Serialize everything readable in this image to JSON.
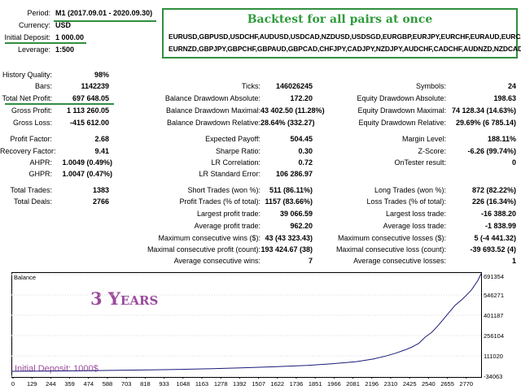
{
  "header": {
    "period_label": "Period:",
    "period_value": "M1 (2017.09.01 - 2020.09.30)",
    "currency_label": "Currency:",
    "currency_value": "USD",
    "deposit_label": "Initial Deposit:",
    "deposit_value": "1 000.00",
    "leverage_label": "Leverage:",
    "leverage_value": "1:500"
  },
  "banner": {
    "title": "Backtest for all pairs at once",
    "pairs_line1": "EURUSD,GBPUSD,USDCHF,AUDUSD,USDCAD,NZDUSD,USDSGD,EURGBP,EURJPY,EURCHF,EURAUD,EURCAD,",
    "pairs_line2": "EURNZD,GBPJPY,GBPCHF,GBPAUD,GBPCAD,CHFJPY,CADJPY,NZDJPY,AUDCHF,CADCHF,AUDNZD,NZDCAD"
  },
  "stats": {
    "history_quality_label": "History Quality:",
    "history_quality": "98%",
    "bars_label": "Bars:",
    "bars": "1142239",
    "ticks_label": "Ticks:",
    "ticks": "146026245",
    "symbols_label": "Symbols:",
    "symbols": "24",
    "net_profit_label": "Total Net Profit:",
    "net_profit": "697 648.05",
    "bal_dd_abs_label": "Balance Drawdown Absolute:",
    "bal_dd_abs": "172.20",
    "eq_dd_abs_label": "Equity Drawdown Absolute:",
    "eq_dd_abs": "198.63",
    "gross_profit_label": "Gross Profit:",
    "gross_profit": "1 113 260.05",
    "bal_dd_max_label": "Balance Drawdown Maximal:",
    "bal_dd_max": "43 402.50 (11.28%)",
    "eq_dd_max_label": "Equity Drawdown Maximal:",
    "eq_dd_max": "74 128.34 (14.63%)",
    "gross_loss_label": "Gross Loss:",
    "gross_loss": "-415 612.00",
    "bal_dd_rel_label": "Balance Drawdown Relative:",
    "bal_dd_rel": "28.64% (332.27)",
    "eq_dd_rel_label": "Equity Drawdown Relative:",
    "eq_dd_rel": "29.69% (6 785.14)",
    "profit_factor_label": "Profit Factor:",
    "profit_factor": "2.68",
    "expected_payoff_label": "Expected Payoff:",
    "expected_payoff": "504.45",
    "margin_level_label": "Margin Level:",
    "margin_level": "188.11%",
    "recovery_factor_label": "Recovery Factor:",
    "recovery_factor": "9.41",
    "sharpe_label": "Sharpe Ratio:",
    "sharpe": "0.30",
    "zscore_label": "Z-Score:",
    "zscore": "-6.26 (99.74%)",
    "ahpr_label": "AHPR:",
    "ahpr": "1.0049 (0.49%)",
    "lr_corr_label": "LR Correlation:",
    "lr_corr": "0.72",
    "ontester_label": "OnTester result:",
    "ontester": "0",
    "ghpr_label": "GHPR:",
    "ghpr": "1.0047 (0.47%)",
    "lr_err_label": "LR Standard Error:",
    "lr_err": "106 286.97",
    "total_trades_label": "Total Trades:",
    "total_trades": "1383",
    "short_label": "Short Trades (won %):",
    "short": "511 (86.11%)",
    "long_label": "Long Trades (won %):",
    "long": "872 (82.22%)",
    "total_deals_label": "Total Deals:",
    "total_deals": "2766",
    "profit_trades_label": "Profit Trades (% of total):",
    "profit_trades": "1157 (83.66%)",
    "loss_trades_label": "Loss Trades (% of total):",
    "loss_trades": "226 (16.34%)",
    "largest_profit_label": "Largest profit trade:",
    "largest_profit": "39 066.59",
    "largest_loss_label": "Largest loss trade:",
    "largest_loss": "-16 388.20",
    "avg_profit_label": "Average profit trade:",
    "avg_profit": "962.20",
    "avg_loss_label": "Average loss trade:",
    "avg_loss": "-1 838.99",
    "max_cons_wins_label": "Maximum consecutive wins ($):",
    "max_cons_wins": "43 (43 323.43)",
    "max_cons_losses_label": "Maximum consecutive losses ($):",
    "max_cons_losses": "5 (-4 441.32)",
    "maximal_cons_profit_label": "Maximal consecutive profit (count):",
    "maximal_cons_profit": "193 424.67 (38)",
    "maximal_cons_loss_label": "Maximal consecutive loss (count):",
    "maximal_cons_loss": "-39 693.52 (4)",
    "avg_cons_wins_label": "Average consecutive wins:",
    "avg_cons_wins": "7",
    "avg_cons_losses_label": "Average consecutive losses:",
    "avg_cons_losses": "1"
  },
  "chart_data": {
    "type": "line",
    "title": "Balance",
    "overlay_text": "3 Years",
    "deposit_note": "Initial Deposit: 1000$",
    "x_ticks": [
      "0",
      "129",
      "244",
      "359",
      "474",
      "588",
      "703",
      "818",
      "933",
      "1048",
      "1163",
      "1278",
      "1392",
      "1507",
      "1622",
      "1736",
      "1851",
      "1966",
      "2081",
      "2196",
      "2310",
      "2425",
      "2540",
      "2655",
      "2770"
    ],
    "y_ticks": [
      "691354",
      "546271",
      "401187",
      "256104",
      "111020",
      "-34063"
    ],
    "xlim": [
      0,
      2860
    ],
    "ylim": [
      -34063,
      691354
    ],
    "series": [
      {
        "x": [
          0,
          200,
          400,
          600,
          800,
          1000,
          1200,
          1400,
          1600,
          1800,
          1950,
          2100,
          2200,
          2280,
          2340,
          2400,
          2440,
          2480,
          2520,
          2560,
          2600,
          2650,
          2700,
          2750,
          2800,
          2840,
          2860
        ],
        "y": [
          1000,
          2500,
          4500,
          7000,
          10000,
          14000,
          19000,
          25000,
          33000,
          43000,
          55000,
          70000,
          88000,
          110000,
          130000,
          155000,
          175000,
          200000,
          245000,
          280000,
          330000,
          400000,
          470000,
          520000,
          580000,
          650000,
          697648
        ]
      }
    ],
    "line_color": "#1a1a7a"
  },
  "colors": {
    "accent_green": "#2f8f3f",
    "overlay_purple": "#9b4b9b"
  }
}
